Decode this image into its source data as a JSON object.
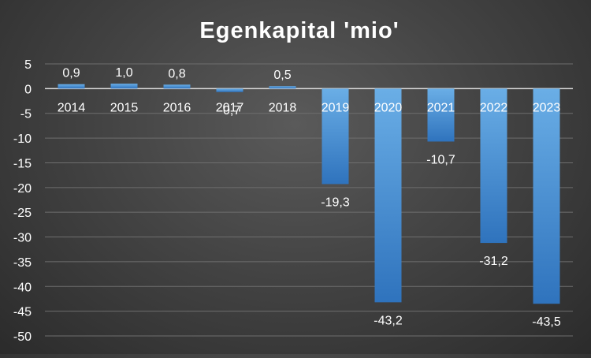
{
  "chart_data": {
    "type": "bar",
    "title": "Egenkapital 'mio'",
    "xlabel": "",
    "ylabel": "",
    "categories": [
      "2014",
      "2015",
      "2016",
      "2017",
      "2018",
      "2019",
      "2020",
      "2021",
      "2022",
      "2023"
    ],
    "values": [
      0.9,
      1.0,
      0.8,
      -0.7,
      0.5,
      -19.3,
      -43.2,
      -10.7,
      -31.2,
      -43.5
    ],
    "data_labels": [
      "0,9",
      "1,0",
      "0,8",
      "-0,7",
      "0,5",
      "-19,3",
      "-43,2",
      "-10,7",
      "-31,2",
      "-43,5"
    ],
    "ylim": [
      -50,
      5
    ],
    "yticks": [
      5,
      0,
      -5,
      -10,
      -15,
      -20,
      -25,
      -30,
      -35,
      -40,
      -45,
      -50
    ],
    "grid": true,
    "legend": "none",
    "colors": {
      "bar_top": "#6aaee6",
      "bar_bottom": "#2f73bd",
      "text": "#ffffff",
      "gridline": "#6e6e6e",
      "zero_line": "#d9d9d9"
    }
  }
}
